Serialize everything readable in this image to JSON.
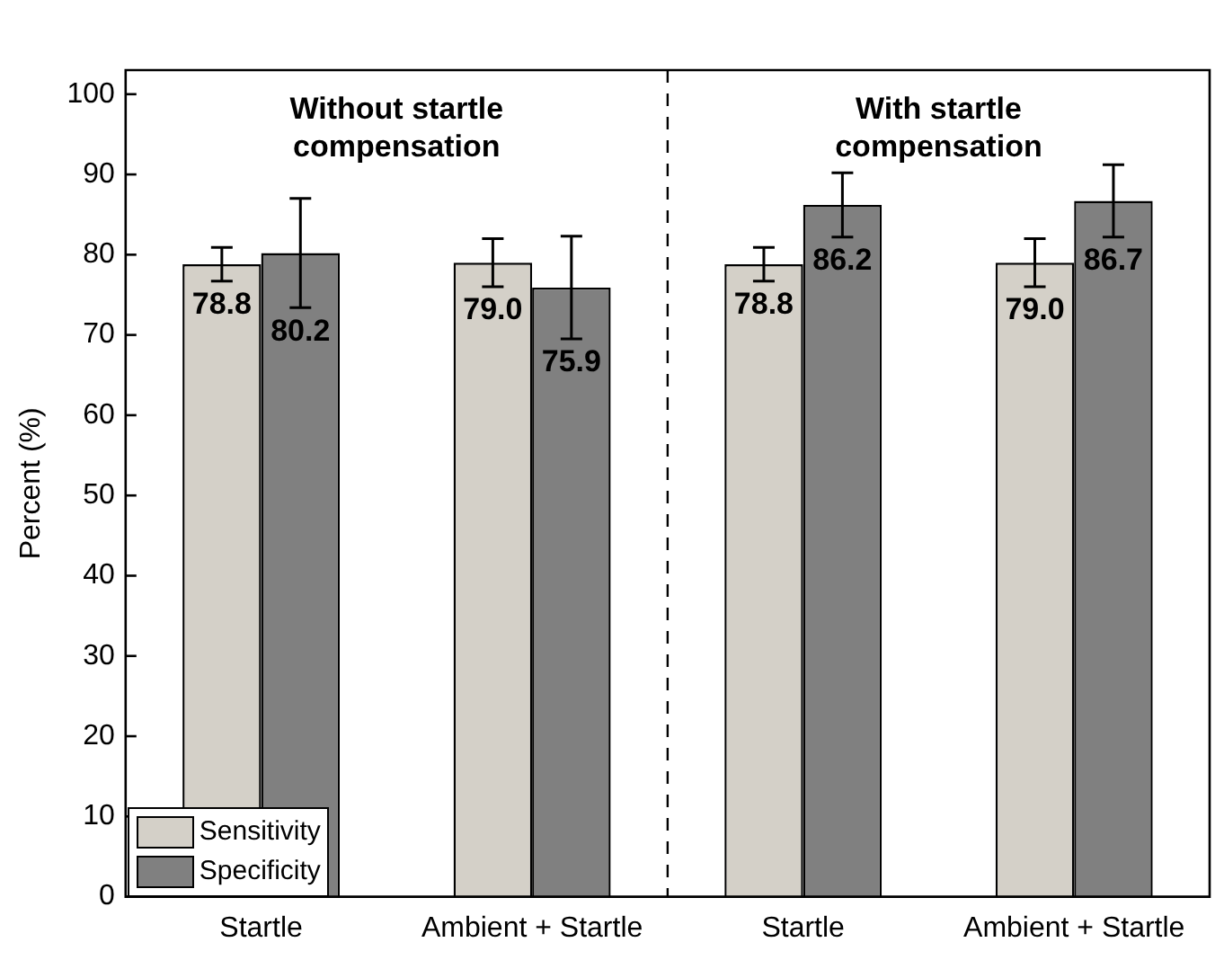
{
  "chart_data": {
    "type": "bar",
    "ylabel": "Percent (%)",
    "categories": [
      "Startle",
      "Ambient + Startle",
      "Startle",
      "Ambient + Startle"
    ],
    "series": [
      {
        "name": "Sensitivity",
        "color": "#d4d0c8",
        "values": [
          78.8,
          79.0,
          78.8,
          79.0
        ],
        "value_labels": [
          "78.8",
          "79.0",
          "78.8",
          "79.0"
        ],
        "errors": [
          2.1,
          3.0,
          2.1,
          3.0
        ]
      },
      {
        "name": "Specificity",
        "color": "#808080",
        "values": [
          80.2,
          75.9,
          86.2,
          86.7
        ],
        "value_labels": [
          "80.2",
          "75.9",
          "86.2",
          "86.7"
        ],
        "errors": [
          6.8,
          6.4,
          4.0,
          4.5
        ]
      }
    ],
    "ylim": [
      0,
      103
    ],
    "yticks": [
      0,
      10,
      20,
      30,
      40,
      50,
      60,
      70,
      80,
      90,
      100
    ],
    "legend": "bottom left",
    "grid": false,
    "annotations": [
      "Without startle compensation",
      "With startle compensation"
    ]
  }
}
